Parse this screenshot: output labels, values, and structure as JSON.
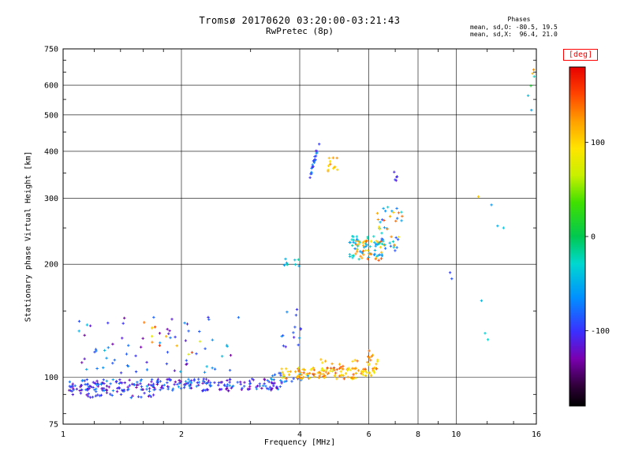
{
  "header": {
    "title": "Tromsø 20170620 03:20:00-03:21:43",
    "subtitle": "RwPretec (8p)",
    "phases": {
      "heading": "Phases",
      "line_o": "mean, sd,O: -80.5, 19.5",
      "line_x": "mean, sd,X:  96.4, 21.0"
    }
  },
  "chart_data": {
    "type": "scatter",
    "title": "Tromsø 20170620 03:20:00-03:21:43",
    "subtitle": "RwPretec (8p)",
    "xlabel": "Frequency [MHz]",
    "ylabel": "Stationary phase Virtual Height [km]",
    "xscale": "log",
    "yscale": "log",
    "xlim": [
      1,
      16
    ],
    "ylim": [
      75,
      750
    ],
    "xticks": [
      1,
      2,
      4,
      6,
      8,
      10,
      16
    ],
    "yticks": [
      75,
      100,
      200,
      300,
      400,
      500,
      600,
      750
    ],
    "xticks_minor": [
      1.2,
      1.4,
      1.6,
      1.8,
      3,
      5,
      7,
      9,
      12,
      14
    ],
    "yticks_minor": [
      80,
      90,
      150,
      250,
      350,
      450,
      550,
      650,
      700
    ],
    "grid": true,
    "colorbar": {
      "label": "[deg]",
      "ticks": [
        100,
        0,
        -100
      ],
      "range": [
        -180,
        180
      ],
      "accent_color": "#ff0000"
    },
    "colormap": [
      [
        0.0,
        "#000000"
      ],
      [
        0.06,
        "#30003a"
      ],
      [
        0.14,
        "#7a00b0"
      ],
      [
        0.22,
        "#3a30ff"
      ],
      [
        0.32,
        "#0090ff"
      ],
      [
        0.42,
        "#00d8d0"
      ],
      [
        0.5,
        "#00c850"
      ],
      [
        0.6,
        "#40e000"
      ],
      [
        0.68,
        "#c8f000"
      ],
      [
        0.76,
        "#ffe400"
      ],
      [
        0.84,
        "#ffa000"
      ],
      [
        0.92,
        "#ff4400"
      ],
      [
        1.0,
        "#e80000"
      ]
    ],
    "clusters": [
      {
        "name": "e-band-blue",
        "n": 240,
        "seed": 11,
        "f": [
          1.03,
          3.6
        ],
        "h": [
          92,
          99
        ],
        "deg": [
          -135,
          -55
        ]
      },
      {
        "name": "e-band-blue-low",
        "n": 45,
        "seed": 12,
        "f": [
          1.03,
          1.7
        ],
        "h": [
          88,
          95
        ],
        "deg": [
          -130,
          -70
        ]
      },
      {
        "name": "e-band-cyan-mid",
        "n": 22,
        "seed": 13,
        "f": [
          3.3,
          4.35
        ],
        "h": [
          97,
          103
        ],
        "deg": [
          -95,
          -40
        ]
      },
      {
        "name": "e-band-yellow",
        "n": 120,
        "seed": 14,
        "f": [
          3.6,
          6.2
        ],
        "h": [
          99,
          106
        ],
        "deg": [
          75,
          150
        ]
      },
      {
        "name": "e-band-orange-high",
        "n": 16,
        "seed": 15,
        "f": [
          4.5,
          6.1
        ],
        "h": [
          105,
          114
        ],
        "deg": [
          95,
          165
        ]
      },
      {
        "name": "e-bump-6mhz",
        "n": 14,
        "seed": 16,
        "f": [
          5.8,
          6.35
        ],
        "h": [
          103,
          119
        ],
        "deg": [
          85,
          150
        ]
      },
      {
        "name": "es-scatter-blue",
        "n": 70,
        "seed": 17,
        "f": [
          1.08,
          2.8
        ],
        "h": [
          102,
          148
        ],
        "deg": [
          -140,
          -40
        ]
      },
      {
        "name": "es-scatter-warm",
        "n": 12,
        "seed": 18,
        "f": [
          1.55,
          2.35
        ],
        "h": [
          108,
          142
        ],
        "deg": [
          60,
          170
        ]
      },
      {
        "name": "scatter-37mhz-blue",
        "n": 14,
        "seed": 19,
        "f": [
          3.6,
          4.05
        ],
        "h": [
          118,
          152
        ],
        "deg": [
          -120,
          -60
        ]
      },
      {
        "name": "echoes-200km",
        "n": 9,
        "seed": 20,
        "f": [
          3.6,
          4.0
        ],
        "h": [
          195,
          207
        ],
        "deg": [
          -60,
          -15
        ]
      },
      {
        "name": "f-trace",
        "n": 22,
        "seed": 21,
        "f": [
          4.25,
          4.52
        ],
        "h": [
          340,
          436
        ],
        "deg": [
          -115,
          -60
        ],
        "corr": 1
      },
      {
        "name": "f-yellow-400km",
        "n": 12,
        "seed": 22,
        "f": [
          4.72,
          5.05
        ],
        "h": [
          352,
          400
        ],
        "deg": [
          85,
          140
        ]
      },
      {
        "name": "f-spread-cyan",
        "n": 55,
        "seed": 23,
        "f": [
          5.35,
          6.6
        ],
        "h": [
          206,
          238
        ],
        "deg": [
          -75,
          -15
        ]
      },
      {
        "name": "f-spread-yellow",
        "n": 35,
        "seed": 24,
        "f": [
          5.5,
          6.7
        ],
        "h": [
          204,
          232
        ],
        "deg": [
          80,
          150
        ]
      },
      {
        "name": "f-upper-cyan",
        "n": 28,
        "seed": 25,
        "f": [
          6.2,
          7.35
        ],
        "h": [
          215,
          290
        ],
        "deg": [
          -95,
          -25
        ]
      },
      {
        "name": "f-upper-yellow",
        "n": 14,
        "seed": 26,
        "f": [
          6.3,
          7.3
        ],
        "h": [
          220,
          285
        ],
        "deg": [
          85,
          150
        ]
      },
      {
        "name": "f-350km-blue",
        "n": 5,
        "seed": 27,
        "f": [
          6.9,
          7.25
        ],
        "h": [
          334,
          356
        ],
        "deg": [
          -120,
          -70
        ]
      }
    ],
    "points": [
      [
        9.65,
        190,
        -95
      ],
      [
        9.75,
        183,
        -88
      ],
      [
        11.85,
        131,
        -32
      ],
      [
        12.05,
        126,
        -28
      ],
      [
        11.4,
        303,
        108
      ],
      [
        11.6,
        160,
        -45
      ],
      [
        12.3,
        288,
        -60
      ],
      [
        12.75,
        253,
        -48
      ],
      [
        13.2,
        250,
        -40
      ],
      [
        15.25,
        563,
        -42
      ],
      [
        15.5,
        598,
        15
      ],
      [
        15.55,
        515,
        -55
      ],
      [
        15.65,
        645,
        115
      ],
      [
        15.75,
        660,
        130
      ],
      [
        15.8,
        633,
        -25
      ]
    ]
  }
}
